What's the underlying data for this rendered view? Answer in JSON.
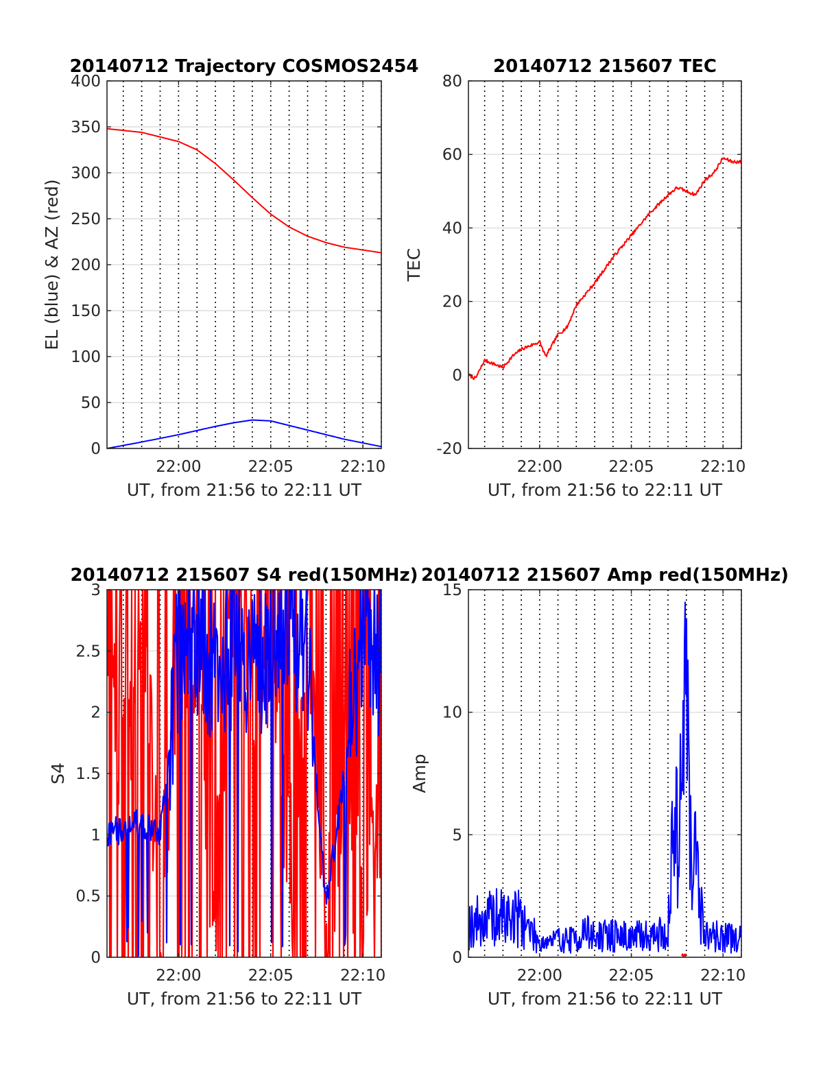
{
  "chart_data": [
    {
      "type": "line",
      "title": "20140712 Trajectory COSMOS2454",
      "xlabel": "UT, from 21:56 to 22:11 UT",
      "ylabel": "EL (blue) & AZ (red)",
      "xlim": [
        "21:56:07",
        "22:11:00"
      ],
      "ylim": [
        0,
        400
      ],
      "xticks": [
        "22:00",
        "22:05",
        "22:10"
      ],
      "yticks": [
        "0",
        "50",
        "100",
        "150",
        "200",
        "250",
        "300",
        "350",
        "400"
      ],
      "grid": true,
      "series": [
        {
          "color": "#ff0000",
          "x": [
            "21:56:07",
            "21:58:00",
            "22:00:00",
            "22:01:00",
            "22:02:00",
            "22:03:00",
            "22:04:00",
            "22:05:00",
            "22:06:00",
            "22:07:00",
            "22:08:00",
            "22:09:00",
            "22:10:00",
            "22:11:00"
          ],
          "values": [
            348,
            344,
            334,
            325,
            310,
            292,
            273,
            255,
            241,
            231,
            224,
            219,
            216,
            213
          ]
        },
        {
          "color": "#0000ff",
          "x": [
            "21:56:07",
            "21:58:00",
            "22:00:00",
            "22:02:00",
            "22:03:00",
            "22:04:00",
            "22:05:00",
            "22:06:00",
            "22:07:00",
            "22:08:00",
            "22:09:00",
            "22:10:00",
            "22:11:00"
          ],
          "values": [
            0,
            7,
            15,
            24,
            28,
            31,
            30,
            25,
            20,
            15,
            10,
            6,
            2
          ]
        }
      ]
    },
    {
      "type": "line",
      "title": "20140712 215607 TEC",
      "xlabel": "UT, from 21:56 to 22:11 UT",
      "ylabel": "TEC",
      "xlim": [
        "21:56:07",
        "22:11:00"
      ],
      "ylim": [
        -20,
        80
      ],
      "xticks": [
        "22:00",
        "22:05",
        "22:10"
      ],
      "yticks": [
        "-20",
        "0",
        "20",
        "40",
        "60",
        "80"
      ],
      "grid": true,
      "series": [
        {
          "color": "#ff0000",
          "x": [
            "21:56:07",
            "21:56:30",
            "21:57:00",
            "21:57:30",
            "21:58:00",
            "21:58:30",
            "21:59:00",
            "21:59:30",
            "22:00:00",
            "22:00:20",
            "22:01:00",
            "22:01:30",
            "22:02:00",
            "22:03:00",
            "22:04:00",
            "22:05:00",
            "22:06:00",
            "22:07:00",
            "22:07:30",
            "22:08:00",
            "22:08:30",
            "22:09:00",
            "22:09:30",
            "22:10:00",
            "22:10:30",
            "22:11:00"
          ],
          "values": [
            0,
            -1,
            4,
            3,
            2,
            5,
            7,
            8,
            9,
            5,
            11,
            13,
            19,
            25,
            32,
            38,
            44,
            49,
            51,
            50,
            49,
            53,
            55,
            59,
            58,
            58
          ]
        }
      ]
    },
    {
      "type": "line",
      "title": "20140712 215607 S4 red(150MHz)",
      "xlabel": "UT, from 21:56 to 22:11 UT",
      "ylabel": "S4",
      "xlim": [
        "21:56:07",
        "22:11:00"
      ],
      "ylim": [
        0,
        3
      ],
      "xticks": [
        "22:00",
        "22:05",
        "22:10"
      ],
      "yticks": [
        "0",
        "0.5",
        "1",
        "1.5",
        "2",
        "2.5",
        "3"
      ],
      "grid": true,
      "series": [
        {
          "color": "#ff0000",
          "x": [
            "21:56:07",
            "21:57:00",
            "21:58:00",
            "21:59:00",
            "22:00:00",
            "22:01:00",
            "22:02:00",
            "22:03:00",
            "22:04:00",
            "22:05:00",
            "22:06:00",
            "22:07:00",
            "22:08:00",
            "22:09:00",
            "22:10:00",
            "22:11:00"
          ],
          "values": [
            3.0,
            1.5,
            3.0,
            0.2,
            2.8,
            2.5,
            0.3,
            2.9,
            2.2,
            2.6,
            0.5,
            2.8,
            0.1,
            1.6,
            0.0,
            1.3
          ]
        },
        {
          "color": "#0000ff",
          "x": [
            "21:56:07",
            "21:57:00",
            "21:58:00",
            "21:59:00",
            "22:00:00",
            "22:01:00",
            "22:02:00",
            "22:03:00",
            "22:04:00",
            "22:05:00",
            "22:06:00",
            "22:07:00",
            "22:08:00",
            "22:09:00",
            "22:10:00",
            "22:11:00"
          ],
          "values": [
            1.0,
            1.05,
            1.1,
            1.0,
            2.5,
            2.6,
            2.3,
            2.7,
            2.3,
            2.6,
            2.8,
            2.4,
            0.4,
            1.5,
            2.7,
            2.4
          ]
        }
      ]
    },
    {
      "type": "line",
      "title": "20140712 215607 Amp red(150MHz)",
      "xlabel": "UT, from 21:56 to 22:11 UT",
      "ylabel": "Amp",
      "xlim": [
        "21:56:07",
        "22:11:00"
      ],
      "ylim": [
        0,
        15
      ],
      "xticks": [
        "22:00",
        "22:05",
        "22:10"
      ],
      "yticks": [
        "0",
        "5",
        "10",
        "15"
      ],
      "grid": true,
      "series": [
        {
          "color": "#0000ff",
          "x": [
            "21:56:07",
            "21:57:00",
            "21:58:00",
            "21:59:00",
            "21:59:30",
            "22:00:00",
            "22:01:00",
            "22:02:00",
            "22:02:30",
            "22:03:00",
            "22:04:00",
            "22:05:00",
            "22:06:00",
            "22:07:00",
            "22:07:30",
            "22:08:00",
            "22:08:30",
            "22:09:00",
            "22:10:00",
            "22:11:00"
          ],
          "values": [
            1.5,
            1.7,
            1.8,
            1.8,
            1.2,
            0.7,
            0.8,
            0.8,
            1.2,
            0.9,
            1.0,
            0.9,
            1.0,
            1.1,
            8.0,
            11.0,
            4.0,
            1.0,
            0.9,
            0.8
          ]
        },
        {
          "color": "#ff0000",
          "x": [
            "22:07:45",
            "22:08:00"
          ],
          "values": [
            0.1,
            0.1
          ]
        }
      ]
    }
  ]
}
